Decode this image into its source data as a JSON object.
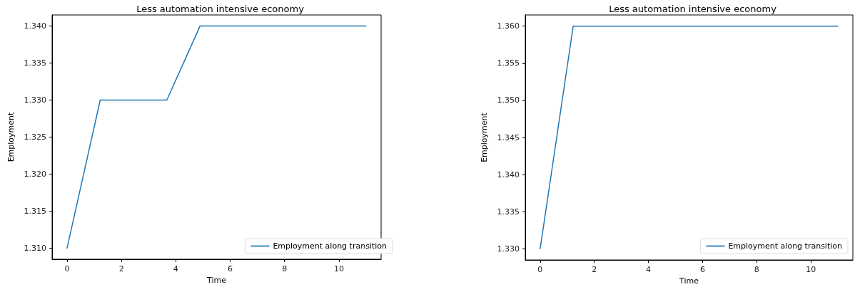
{
  "chart_data": [
    {
      "type": "line",
      "title": "Less automation intensive economy",
      "xlabel": "Time",
      "ylabel": "Employment",
      "x": [
        0,
        1.22,
        3.67,
        4.89,
        11
      ],
      "series": [
        {
          "name": "Employment along transition",
          "color": "#1f77b4",
          "values": [
            1.31,
            1.33,
            1.33,
            1.34,
            1.34
          ]
        }
      ],
      "xlim": [
        -0.55,
        11.55
      ],
      "xticks": [
        0,
        2,
        4,
        6,
        8,
        10
      ],
      "ylim": [
        1.3085,
        1.3415
      ],
      "yticks": [
        {
          "value": 1.31,
          "label": "1.310"
        },
        {
          "value": 1.315,
          "label": "1.315"
        },
        {
          "value": 1.32,
          "label": "1.320"
        },
        {
          "value": 1.325,
          "label": "1.325"
        },
        {
          "value": 1.33,
          "label": "1.330"
        },
        {
          "value": 1.335,
          "label": "1.335"
        },
        {
          "value": 1.34,
          "label": "1.340"
        }
      ],
      "grid": false,
      "legend": "bottom right",
      "marker": "none",
      "line_style": "solid"
    },
    {
      "type": "line",
      "title": "Less automation intensive economy",
      "xlabel": "Time",
      "ylabel": "Employment",
      "x": [
        0,
        1.22,
        11
      ],
      "series": [
        {
          "name": "Employment along transition",
          "color": "#1f77b4",
          "values": [
            1.33,
            1.36,
            1.36
          ]
        }
      ],
      "xlim": [
        -0.55,
        11.55
      ],
      "xticks": [
        0,
        2,
        4,
        6,
        8,
        10
      ],
      "ylim": [
        1.3285,
        1.3615
      ],
      "yticks": [
        {
          "value": 1.33,
          "label": "1.330"
        },
        {
          "value": 1.335,
          "label": "1.335"
        },
        {
          "value": 1.34,
          "label": "1.340"
        },
        {
          "value": 1.345,
          "label": "1.345"
        },
        {
          "value": 1.35,
          "label": "1.350"
        },
        {
          "value": 1.355,
          "label": "1.355"
        },
        {
          "value": 1.36,
          "label": "1.360"
        }
      ],
      "grid": false,
      "legend": "bottom right",
      "marker": "none",
      "line_style": "solid"
    }
  ]
}
